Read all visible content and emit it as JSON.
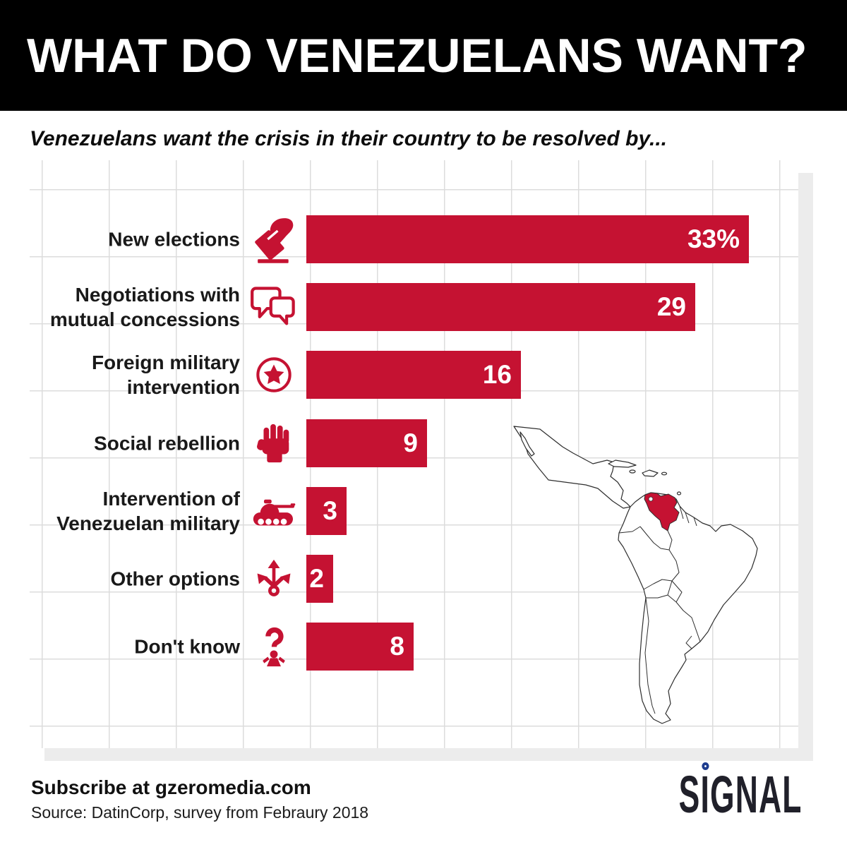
{
  "header": {
    "title": "WHAT DO VENEZUELANS WANT?"
  },
  "subtitle": "Venezuelans want the crisis in their country to be resolved by...",
  "chart_data": {
    "type": "bar",
    "orientation": "horizontal",
    "title": "Venezuelans want the crisis in their country to be resolved by...",
    "categories": [
      "New elections",
      "Negotiations with mutual concessions",
      "Foreign military intervention",
      "Social rebellion",
      "Intervention of Venezuelan military",
      "Other options",
      "Don't know"
    ],
    "label_breaks": [
      [
        "New elections"
      ],
      [
        "Negotiations with",
        "mutual concessions"
      ],
      [
        "Foreign military",
        "intervention"
      ],
      [
        "Social rebellion"
      ],
      [
        "Intervention of",
        "Venezuelan military"
      ],
      [
        "Other options"
      ],
      [
        "Don't know"
      ]
    ],
    "values": [
      33,
      29,
      16,
      9,
      3,
      2,
      8
    ],
    "value_labels": [
      "33%",
      "29",
      "16",
      "9",
      "3",
      "2",
      "8"
    ],
    "unit": "percent of respondents",
    "icons": [
      "ballot-hand",
      "speech-bubbles",
      "star-badge",
      "raised-fist",
      "tank",
      "split-arrows",
      "question-person"
    ],
    "bar_color": "#c51232",
    "grid": true,
    "xlim": [
      0,
      36.5
    ],
    "legend": "none"
  },
  "map": {
    "name": "latin-america-map",
    "highlight_country": "Venezuela",
    "highlight_color": "#c51232",
    "land_color": "#ffffff",
    "outline_color": "#2e2e2e"
  },
  "footer": {
    "subscribe": "Subscribe at gzeromedia.com",
    "source": "Source: DatinCorp, survey from Febraury 2018",
    "logo": "SIGNAL",
    "logo_dot_color": "#1d3c8e"
  },
  "colors": {
    "accent": "#c51232",
    "banner": "#000000",
    "gridline": "#dcdcdc",
    "shadow": "#ececec"
  }
}
